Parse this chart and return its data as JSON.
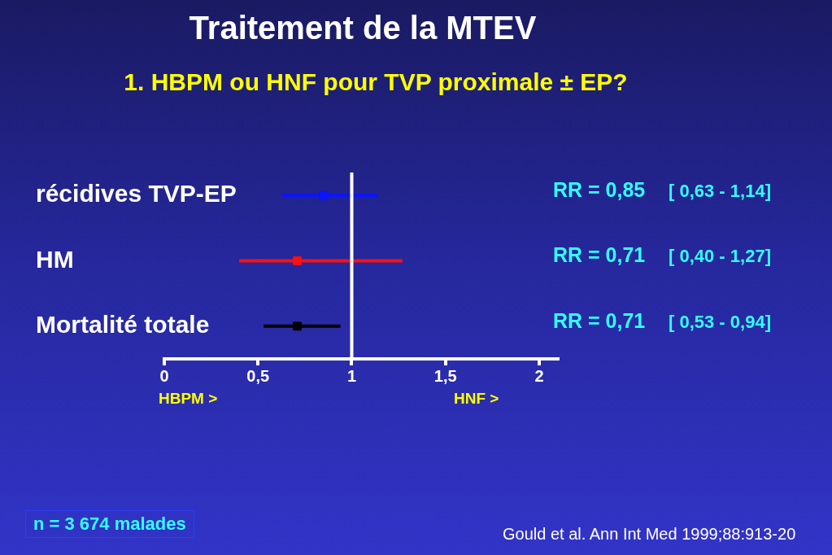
{
  "chart_data": {
    "type": "scatter",
    "orientation": "horizontal",
    "title": "Traitement de la MTEV",
    "subtitle": "1. HBPM ou HNF pour TVP proximale ± EP?",
    "categories": [
      "récidives TVP-EP",
      "HM",
      "Mortalité totale"
    ],
    "values": [
      0.85,
      0.71,
      0.71
    ],
    "errors": [
      [
        0.63,
        1.14
      ],
      [
        0.4,
        1.27
      ],
      [
        0.53,
        0.94
      ]
    ],
    "colors": [
      "#0a14ff",
      "#ff1010",
      "#000000"
    ],
    "value_labels": [
      "RR = 0,85",
      "RR = 0,71",
      "RR = 0,71"
    ],
    "annotations": [
      "[ 0,63 - 1,14]",
      "[ 0,40 - 1,27]",
      "[ 0,53 - 0,94]",
      "HBPM >",
      "HNF >",
      "n = 3 674 malades",
      "Gould et al. Ann Int Med  1999;88:913-20"
    ],
    "xlim": [
      0,
      2.1
    ],
    "xticks": [
      0,
      {
        "value": 0.5,
        "label": "0,5"
      },
      1,
      {
        "value": 1.5,
        "label": "1,5"
      },
      2
    ],
    "ref_lines": [
      {
        "axis": "x",
        "value": 1,
        "color": "#ffffff"
      }
    ],
    "marker": "square",
    "grid": false,
    "legend": false
  }
}
